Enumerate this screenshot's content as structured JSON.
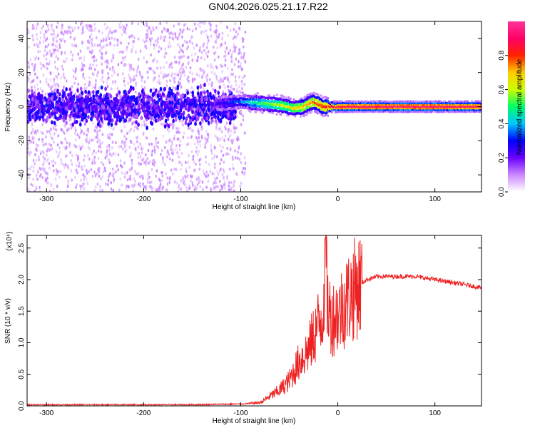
{
  "title": "GN04.2026.025.21.17.R22",
  "chart_data": [
    {
      "type": "heatmap",
      "xlabel": "Height of straight line (km)",
      "ylabel": "Frequency (Hz)",
      "xlim": [
        -320,
        148
      ],
      "ylim": [
        -50,
        50
      ],
      "x_ticks": [
        -300,
        -200,
        -100,
        0,
        100
      ],
      "x_tick_labels": [
        "-300",
        "-200",
        "-100",
        "0",
        "100"
      ],
      "y_ticks": [
        -40,
        -20,
        0,
        20,
        40
      ],
      "y_tick_labels": [
        "-40",
        "-20",
        "0",
        "20",
        "40"
      ],
      "colorbar": {
        "label": "Normalized spectral amplitude",
        "range": [
          0,
          1
        ],
        "ticks": [
          0.0,
          0.2,
          0.4,
          0.6,
          0.8
        ],
        "tick_labels": [
          "0.0",
          "0.2",
          "0.4",
          "0.6",
          "0.8"
        ],
        "colors": [
          "#ffffff",
          "#cc88ff",
          "#6a00ff",
          "#0000ff",
          "#00c8ff",
          "#00ff66",
          "#ccff00",
          "#ffcc00",
          "#ff2200",
          "#ff0066",
          "#ff3399"
        ]
      },
      "ridge": {
        "x": [
          -320,
          -120,
          -100,
          -80,
          -60,
          -45,
          -35,
          -25,
          -15,
          0,
          30,
          70,
          100,
          148
        ],
        "frequency": [
          0,
          2,
          3,
          2,
          1,
          -1,
          0,
          3,
          0,
          0,
          0,
          0,
          0,
          0
        ],
        "amplitude": [
          0.15,
          0.25,
          0.35,
          0.5,
          0.6,
          0.65,
          0.7,
          0.75,
          0.8,
          0.9,
          0.95,
          0.95,
          0.95,
          0.9
        ]
      }
    },
    {
      "type": "line",
      "xlabel": "Height of straight line (km)",
      "ylabel": "SNR (10 * v/v)",
      "y_multiplier": "(x10⁴)",
      "xlim": [
        -320,
        148
      ],
      "ylim": [
        0,
        2.7
      ],
      "x_ticks": [
        -300,
        -200,
        -100,
        0,
        100
      ],
      "x_tick_labels": [
        "-300",
        "-200",
        "-100",
        "0",
        "100"
      ],
      "y_ticks": [
        0.0,
        0.5,
        1.0,
        1.5,
        2.0,
        2.5
      ],
      "y_tick_labels": [
        "0.0",
        "0.5",
        "1.0",
        "1.5",
        "2.0",
        "2.5"
      ],
      "series": [
        {
          "color": "#ee2222",
          "x": [
            -320,
            -150,
            -100,
            -80,
            -60,
            -50,
            -45,
            -40,
            -35,
            -30,
            -25,
            -20,
            -15,
            -13,
            -10,
            -5,
            0,
            10,
            20,
            30,
            40,
            60,
            80,
            100,
            120,
            148
          ],
          "y": [
            0.02,
            0.02,
            0.03,
            0.05,
            0.25,
            0.4,
            0.55,
            0.7,
            0.8,
            0.9,
            1.1,
            1.3,
            1.5,
            2.65,
            1.5,
            1.4,
            1.45,
            1.7,
            1.9,
            2.0,
            2.05,
            2.05,
            2.05,
            2.0,
            1.95,
            1.87
          ]
        }
      ]
    }
  ]
}
